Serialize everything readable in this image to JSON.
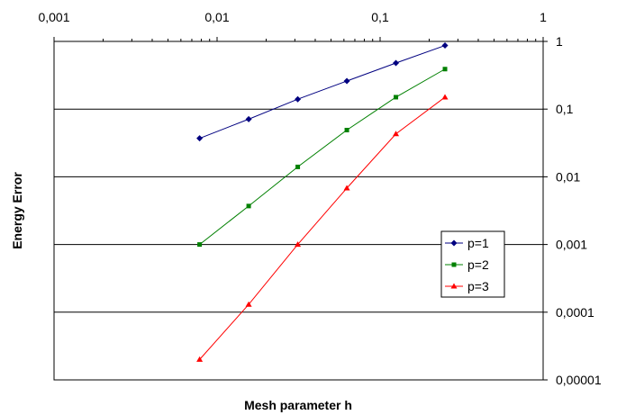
{
  "chart_data": {
    "type": "line",
    "xscale": "log",
    "yscale": "log",
    "xlabel": "Mesh parameter h",
    "ylabel": "Energy Error",
    "xlim": [
      0.001,
      1
    ],
    "ylim": [
      1e-05,
      1
    ],
    "x_ticks": [
      "0,001",
      "0,01",
      "0,1",
      "1"
    ],
    "y_ticks": [
      "1",
      "0,1",
      "0,01",
      "0,001",
      "0,0001",
      "0,00001"
    ],
    "x_axis_position": "top",
    "y_axis_position": "right",
    "grid": "horizontal major gridlines",
    "legend_position": "right-middle",
    "x": [
      0.0078125,
      0.015625,
      0.03125,
      0.0625,
      0.125,
      0.25
    ],
    "series": [
      {
        "name": "p=1",
        "color": "#000080",
        "marker": "diamond",
        "values": [
          0.037,
          0.071,
          0.14,
          0.26,
          0.48,
          0.87
        ]
      },
      {
        "name": "p=2",
        "color": "#008000",
        "marker": "square",
        "values": [
          0.001,
          0.0037,
          0.014,
          0.049,
          0.15,
          0.39
        ]
      },
      {
        "name": "p=3",
        "color": "#ff0000",
        "marker": "triangle",
        "values": [
          2e-05,
          0.00013,
          0.001,
          0.0068,
          0.043,
          0.15
        ]
      }
    ]
  }
}
